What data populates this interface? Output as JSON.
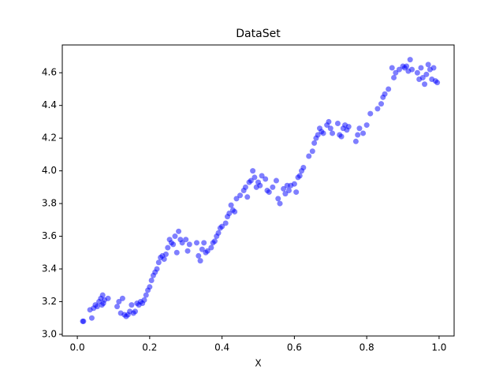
{
  "chart_data": {
    "type": "scatter",
    "title": "DataSet",
    "x_label": "X",
    "color": "#0000ff",
    "x": [
      0.015,
      0.017,
      0.035,
      0.04,
      0.045,
      0.05,
      0.055,
      0.06,
      0.065,
      0.068,
      0.07,
      0.072,
      0.075,
      0.085,
      0.11,
      0.115,
      0.12,
      0.125,
      0.13,
      0.135,
      0.14,
      0.145,
      0.15,
      0.155,
      0.16,
      0.165,
      0.17,
      0.175,
      0.18,
      0.185,
      0.19,
      0.195,
      0.2,
      0.205,
      0.21,
      0.215,
      0.22,
      0.225,
      0.23,
      0.235,
      0.24,
      0.245,
      0.25,
      0.255,
      0.26,
      0.265,
      0.27,
      0.275,
      0.28,
      0.285,
      0.29,
      0.3,
      0.305,
      0.31,
      0.33,
      0.335,
      0.34,
      0.345,
      0.35,
      0.355,
      0.36,
      0.37,
      0.375,
      0.38,
      0.385,
      0.39,
      0.395,
      0.4,
      0.41,
      0.415,
      0.42,
      0.425,
      0.43,
      0.435,
      0.44,
      0.45,
      0.46,
      0.465,
      0.47,
      0.475,
      0.48,
      0.485,
      0.49,
      0.495,
      0.5,
      0.505,
      0.51,
      0.52,
      0.525,
      0.53,
      0.54,
      0.55,
      0.555,
      0.56,
      0.57,
      0.575,
      0.58,
      0.585,
      0.59,
      0.6,
      0.605,
      0.61,
      0.615,
      0.62,
      0.625,
      0.64,
      0.65,
      0.655,
      0.66,
      0.665,
      0.67,
      0.675,
      0.68,
      0.69,
      0.695,
      0.7,
      0.705,
      0.72,
      0.725,
      0.73,
      0.735,
      0.74,
      0.745,
      0.75,
      0.77,
      0.775,
      0.78,
      0.79,
      0.8,
      0.81,
      0.83,
      0.84,
      0.845,
      0.85,
      0.86,
      0.87,
      0.875,
      0.88,
      0.89,
      0.9,
      0.905,
      0.91,
      0.915,
      0.92,
      0.925,
      0.94,
      0.945,
      0.95,
      0.955,
      0.96,
      0.965,
      0.97,
      0.975,
      0.98,
      0.985,
      0.99,
      0.995
    ],
    "values": [
      3.08,
      3.08,
      3.15,
      3.1,
      3.16,
      3.18,
      3.17,
      3.2,
      3.22,
      3.18,
      3.24,
      3.19,
      3.21,
      3.22,
      3.17,
      3.2,
      3.13,
      3.22,
      3.12,
      3.11,
      3.12,
      3.14,
      3.18,
      3.13,
      3.14,
      3.19,
      3.18,
      3.2,
      3.19,
      3.21,
      3.24,
      3.27,
      3.29,
      3.33,
      3.36,
      3.38,
      3.4,
      3.44,
      3.47,
      3.48,
      3.46,
      3.49,
      3.53,
      3.58,
      3.56,
      3.55,
      3.6,
      3.5,
      3.63,
      3.58,
      3.56,
      3.58,
      3.51,
      3.55,
      3.56,
      3.48,
      3.45,
      3.52,
      3.56,
      3.5,
      3.51,
      3.53,
      3.56,
      3.57,
      3.6,
      3.62,
      3.65,
      3.66,
      3.68,
      3.72,
      3.74,
      3.79,
      3.76,
      3.75,
      3.83,
      3.85,
      3.88,
      3.9,
      3.84,
      3.93,
      3.94,
      4.0,
      3.96,
      3.9,
      3.93,
      3.91,
      3.97,
      3.95,
      3.88,
      3.87,
      3.9,
      3.94,
      3.83,
      3.8,
      3.89,
      3.86,
      3.91,
      3.88,
      3.91,
      3.92,
      3.87,
      3.96,
      3.97,
      4.0,
      4.02,
      4.09,
      4.12,
      4.17,
      4.2,
      4.22,
      4.26,
      4.24,
      4.23,
      4.28,
      4.3,
      4.26,
      4.23,
      4.29,
      4.22,
      4.21,
      4.26,
      4.28,
      4.25,
      4.27,
      4.18,
      4.22,
      4.26,
      4.23,
      4.28,
      4.35,
      4.38,
      4.41,
      4.45,
      4.47,
      4.5,
      4.63,
      4.57,
      4.6,
      4.62,
      4.64,
      4.63,
      4.64,
      4.61,
      4.68,
      4.62,
      4.6,
      4.56,
      4.63,
      4.57,
      4.53,
      4.59,
      4.65,
      4.62,
      4.56,
      4.63,
      4.55,
      4.54
    ],
    "xlim": [
      -0.0416,
      1.0416
    ],
    "ylim": [
      2.99,
      4.77
    ],
    "xticks": [
      {
        "value": 0.0,
        "label": "0.0"
      },
      0.2,
      0.4,
      0.6,
      0.8,
      {
        "value": 1.0,
        "label": "1.0"
      }
    ],
    "yticks": [
      {
        "value": 3.0,
        "label": "3.0"
      },
      3.2,
      3.4,
      3.6,
      3.8,
      {
        "value": 4.0,
        "label": "4.0"
      },
      4.2,
      4.4,
      4.6
    ]
  }
}
